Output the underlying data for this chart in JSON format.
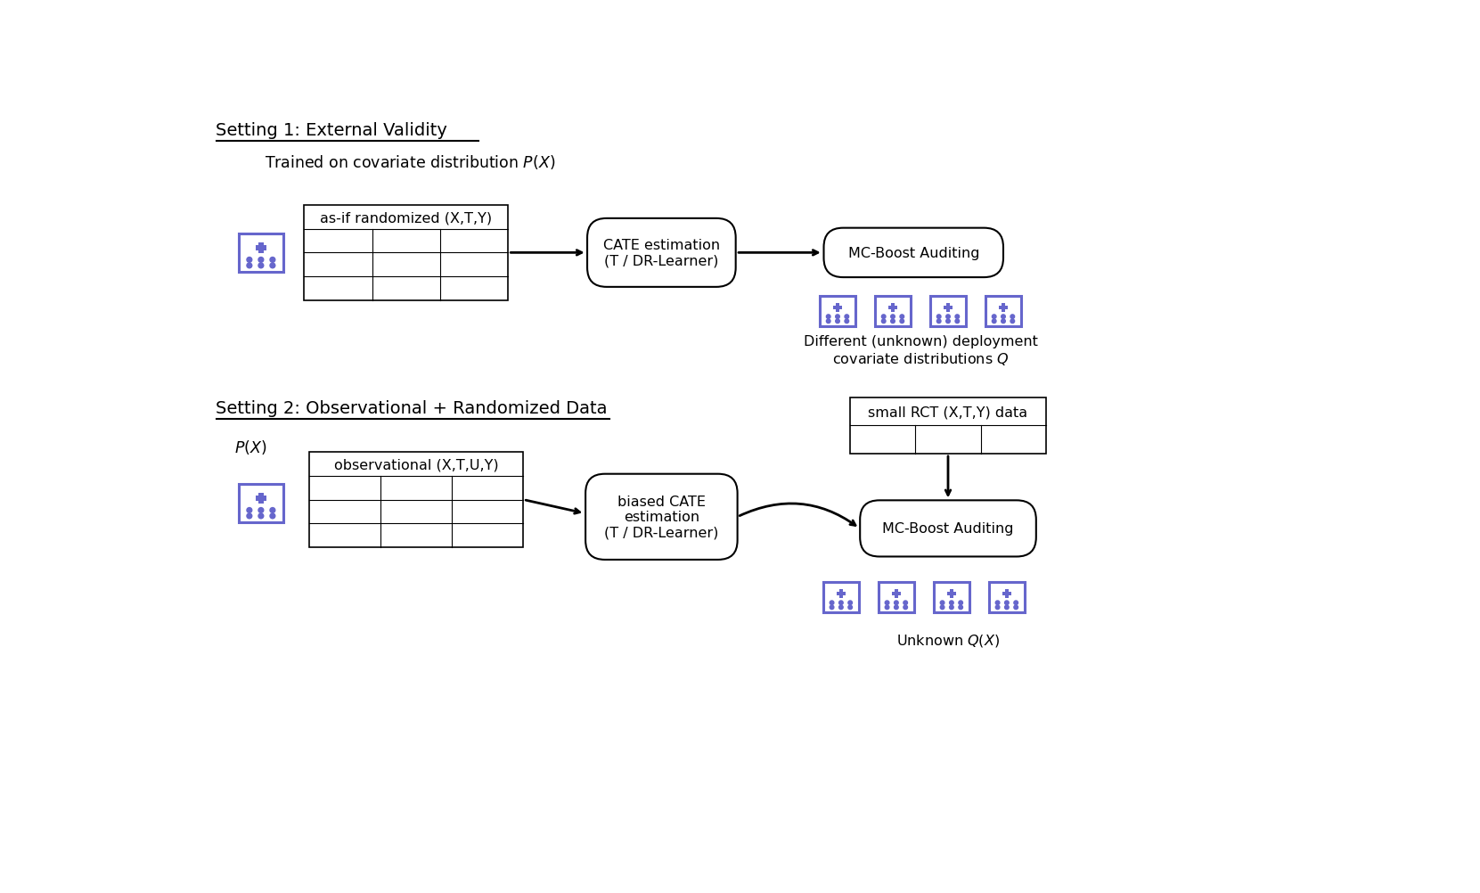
{
  "bg_color": "#ffffff",
  "text_color": "#000000",
  "icon_color": "#6666cc",
  "figsize": [
    16.61,
    10.03
  ],
  "dpi": 100,
  "setting1_title": "Setting 1: External Validity",
  "setting1_subtitle": "Trained on covariate distribution $P(X)$",
  "setting2_title": "Setting 2: Observational + Randomized Data",
  "s1_table_label": "as-if randomized (X,T,Y)",
  "s1_cate_label": "CATE estimation\n(T / DR-Learner)",
  "s1_audit_label": "MC-Boost Auditing",
  "s1_deploy_label": "Different (unknown) deployment\ncovariate distributions $Q$",
  "s2_px_label": "$P(X)$",
  "s2_table_label": "observational (X,T,U,Y)",
  "s2_cate_label": "biased CATE\nestimation\n(T / DR-Learner)",
  "s2_rct_label": "small RCT (X,T,Y) data",
  "s2_audit_label": "MC-Boost Auditing",
  "s2_unknown_label": "Unknown $Q(X)$"
}
